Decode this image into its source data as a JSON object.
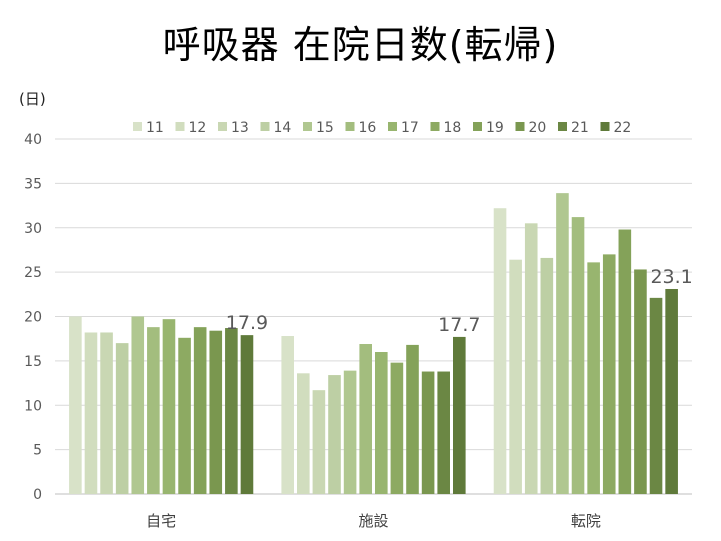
{
  "title": "呼吸器 在院日数(転帰)",
  "unit_label": "(日)",
  "chart_data": {
    "type": "bar",
    "title": "呼吸器 在院日数(転帰)",
    "ylabel": "(日)",
    "xlabel": "",
    "ylim": [
      0,
      40
    ],
    "yticks": [
      0,
      5,
      10,
      15,
      20,
      25,
      30,
      35,
      40
    ],
    "grid": true,
    "legend_position": "top",
    "categories": [
      "自宅",
      "施設",
      "転院"
    ],
    "series": [
      {
        "name": "11",
        "color": "#d8e2c8",
        "values": [
          20.0,
          17.8,
          32.2
        ]
      },
      {
        "name": "12",
        "color": "#d1ddbe",
        "values": [
          18.2,
          13.6,
          26.4
        ]
      },
      {
        "name": "13",
        "color": "#c9d7b3",
        "values": [
          18.2,
          11.7,
          30.5
        ]
      },
      {
        "name": "14",
        "color": "#bdcfa4",
        "values": [
          17.0,
          13.4,
          26.6
        ]
      },
      {
        "name": "15",
        "color": "#b0c790",
        "values": [
          20.0,
          13.9,
          33.9
        ]
      },
      {
        "name": "16",
        "color": "#a3bd7e",
        "values": [
          18.8,
          16.9,
          31.2
        ]
      },
      {
        "name": "17",
        "color": "#98b56f",
        "values": [
          19.7,
          16.0,
          26.1
        ]
      },
      {
        "name": "18",
        "color": "#8daa62",
        "values": [
          17.6,
          14.8,
          27.0
        ]
      },
      {
        "name": "19",
        "color": "#84a259",
        "values": [
          18.8,
          16.8,
          29.8
        ]
      },
      {
        "name": "20",
        "color": "#7a974f",
        "values": [
          18.4,
          13.8,
          25.3
        ]
      },
      {
        "name": "21",
        "color": "#6b8744",
        "values": [
          18.7,
          13.8,
          22.1
        ]
      },
      {
        "name": "22",
        "color": "#5f7a3a",
        "values": [
          17.9,
          17.7,
          23.1
        ]
      }
    ],
    "data_labels": {
      "series": "22",
      "values": [
        "17.9",
        "17.7",
        "23.1"
      ]
    }
  }
}
